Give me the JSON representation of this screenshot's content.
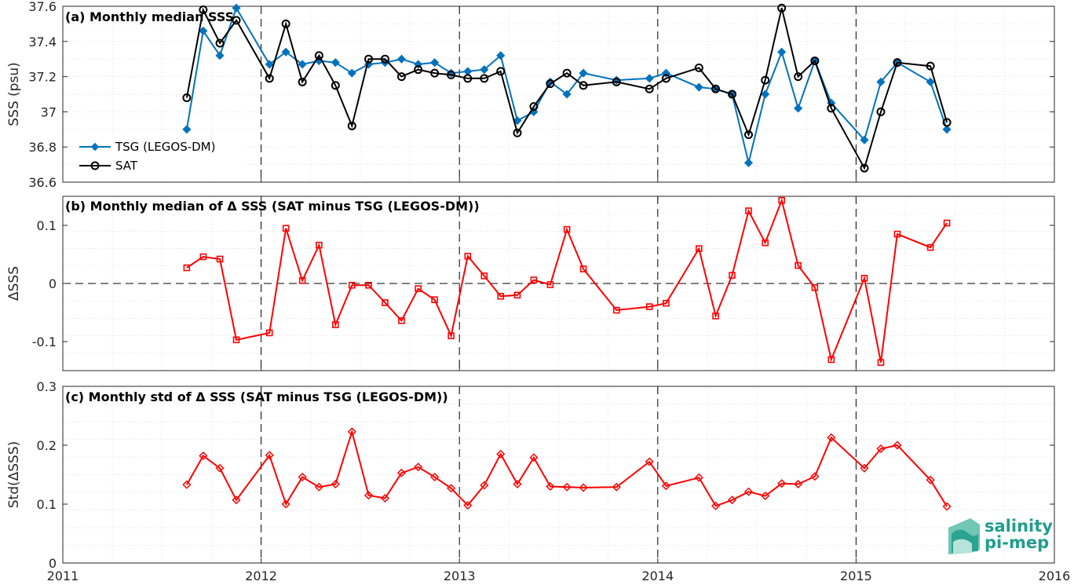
{
  "chart_data": [
    {
      "type": "line",
      "title": "(a) Monthly median SSS",
      "ylabel": "SSS (psu)",
      "ylim": [
        36.6,
        37.6
      ],
      "yticks": [
        36.6,
        36.8,
        37,
        37.2,
        37.4,
        37.6
      ],
      "ytick_labels": [
        "36.6",
        "36.8",
        "37",
        "37.2",
        "37.4",
        "37.6"
      ],
      "xlim": [
        2011,
        2016
      ],
      "grid": "minor dotted",
      "legend": "bottom-left",
      "series": [
        {
          "name": "TSG (LEGOS-DM)",
          "color": "#0072BD",
          "marker": "diamond",
          "x": [
            2011.625,
            2011.708,
            2011.792,
            2011.875,
            2012.042,
            2012.125,
            2012.208,
            2012.292,
            2012.375,
            2012.458,
            2012.542,
            2012.625,
            2012.708,
            2012.792,
            2012.875,
            2012.958,
            2013.042,
            2013.125,
            2013.208,
            2013.292,
            2013.375,
            2013.458,
            2013.542,
            2013.625,
            2013.792,
            2013.958,
            2014.042,
            2014.208,
            2014.292,
            2014.375,
            2014.458,
            2014.542,
            2014.625,
            2014.708,
            2014.792,
            2014.875,
            2015.042,
            2015.125,
            2015.208,
            2015.375,
            2015.458
          ],
          "values": [
            36.9,
            37.46,
            37.32,
            37.59,
            37.27,
            37.34,
            37.27,
            37.29,
            37.28,
            37.22,
            37.27,
            37.28,
            37.3,
            37.27,
            37.28,
            37.22,
            37.23,
            37.24,
            37.32,
            36.95,
            37.0,
            37.17,
            37.1,
            37.22,
            37.18,
            37.19,
            37.22,
            37.14,
            37.13,
            37.1,
            36.71,
            37.1,
            37.34,
            37.02,
            37.29,
            37.05,
            36.84,
            37.17,
            37.28,
            37.17,
            36.9
          ]
        },
        {
          "name": "SAT",
          "color": "#000000",
          "marker": "circle",
          "x": [
            2011.625,
            2011.708,
            2011.792,
            2011.875,
            2012.042,
            2012.125,
            2012.208,
            2012.292,
            2012.375,
            2012.458,
            2012.542,
            2012.625,
            2012.708,
            2012.792,
            2012.875,
            2012.958,
            2013.042,
            2013.125,
            2013.208,
            2013.292,
            2013.375,
            2013.458,
            2013.542,
            2013.625,
            2013.792,
            2013.958,
            2014.042,
            2014.208,
            2014.292,
            2014.375,
            2014.458,
            2014.542,
            2014.625,
            2014.708,
            2014.792,
            2014.875,
            2015.042,
            2015.125,
            2015.208,
            2015.375,
            2015.458
          ],
          "values": [
            37.08,
            37.58,
            37.39,
            37.52,
            37.19,
            37.5,
            37.17,
            37.32,
            37.15,
            36.92,
            37.3,
            37.3,
            37.2,
            37.24,
            37.22,
            37.21,
            37.19,
            37.19,
            37.23,
            36.88,
            37.03,
            37.16,
            37.22,
            37.15,
            37.17,
            37.13,
            37.19,
            37.25,
            37.13,
            37.1,
            36.87,
            37.18,
            37.59,
            37.2,
            37.29,
            37.02,
            36.68,
            37.0,
            37.28,
            37.26,
            36.94
          ]
        }
      ]
    },
    {
      "type": "line",
      "title": "(b) Monthly median of Δ SSS (SAT minus TSG (LEGOS-DM))",
      "ylabel": "ΔSSS",
      "ylim": [
        -0.15,
        0.15
      ],
      "yticks": [
        -0.1,
        0,
        0.1
      ],
      "ytick_labels": [
        "-0.1",
        "0",
        "0.1"
      ],
      "xlim": [
        2011,
        2016
      ],
      "grid": "minor dotted",
      "series": [
        {
          "color": "#FF0000",
          "marker": "square",
          "x": [
            2011.625,
            2011.708,
            2011.792,
            2011.875,
            2012.042,
            2012.125,
            2012.208,
            2012.292,
            2012.375,
            2012.458,
            2012.542,
            2012.625,
            2012.708,
            2012.792,
            2012.875,
            2012.958,
            2013.042,
            2013.125,
            2013.208,
            2013.292,
            2013.375,
            2013.458,
            2013.542,
            2013.625,
            2013.792,
            2013.958,
            2014.042,
            2014.208,
            2014.292,
            2014.375,
            2014.458,
            2014.542,
            2014.625,
            2014.708,
            2014.792,
            2014.875,
            2015.042,
            2015.125,
            2015.208,
            2015.375,
            2015.458
          ],
          "values": [
            0.027,
            0.046,
            0.042,
            -0.097,
            -0.085,
            0.095,
            0.005,
            0.066,
            -0.071,
            -0.003,
            -0.003,
            -0.033,
            -0.064,
            -0.009,
            -0.028,
            -0.09,
            0.047,
            0.013,
            -0.022,
            -0.02,
            0.006,
            -0.002,
            0.093,
            0.025,
            -0.046,
            -0.04,
            -0.034,
            0.06,
            -0.056,
            0.014,
            0.125,
            0.07,
            0.143,
            0.031,
            -0.007,
            -0.131,
            0.009,
            -0.136,
            0.085,
            0.062,
            0.104
          ]
        }
      ]
    },
    {
      "type": "line",
      "title": "(c) Monthly std of Δ SSS (SAT minus TSG (LEGOS-DM))",
      "ylabel": "Std(ΔSSS)",
      "ylim": [
        0,
        0.3
      ],
      "yticks": [
        0,
        0.1,
        0.2,
        0.3
      ],
      "ytick_labels": [
        "0",
        "0.1",
        "0.2",
        "0.3"
      ],
      "xlim": [
        2011,
        2016
      ],
      "xticks": [
        2011,
        2012,
        2013,
        2014,
        2015,
        2016
      ],
      "xtick_labels": [
        "2011",
        "2012",
        "2013",
        "2014",
        "2015",
        "2016"
      ],
      "grid": "minor dotted",
      "series": [
        {
          "color": "#FF0000",
          "marker": "diamond",
          "x": [
            2011.625,
            2011.708,
            2011.792,
            2011.875,
            2012.042,
            2012.125,
            2012.208,
            2012.292,
            2012.375,
            2012.458,
            2012.542,
            2012.625,
            2012.708,
            2012.792,
            2012.875,
            2012.958,
            2013.042,
            2013.125,
            2013.208,
            2013.292,
            2013.375,
            2013.458,
            2013.542,
            2013.625,
            2013.792,
            2013.958,
            2014.042,
            2014.208,
            2014.292,
            2014.375,
            2014.458,
            2014.542,
            2014.625,
            2014.708,
            2014.792,
            2014.875,
            2015.042,
            2015.125,
            2015.208,
            2015.375,
            2015.458
          ],
          "values": [
            0.133,
            0.182,
            0.161,
            0.107,
            0.183,
            0.1,
            0.146,
            0.129,
            0.134,
            0.223,
            0.115,
            0.11,
            0.153,
            0.163,
            0.146,
            0.127,
            0.098,
            0.132,
            0.185,
            0.134,
            0.179,
            0.13,
            0.129,
            0.128,
            0.129,
            0.172,
            0.131,
            0.145,
            0.097,
            0.107,
            0.121,
            0.114,
            0.135,
            0.134,
            0.147,
            0.213,
            0.161,
            0.194,
            0.2,
            0.141,
            0.096
          ]
        }
      ]
    }
  ],
  "logo": {
    "line1": "salinity",
    "line2": "pi-mep",
    "color": "#1f9e8c"
  }
}
